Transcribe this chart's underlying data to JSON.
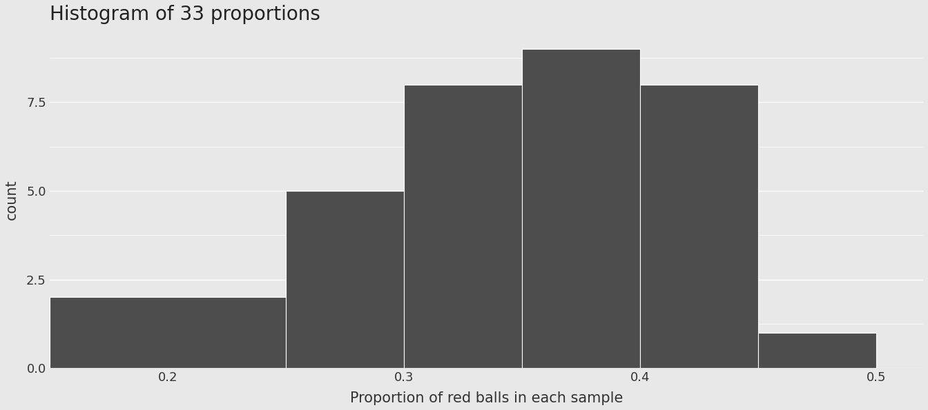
{
  "title": "Histogram of 33 proportions",
  "xlabel": "Proportion of red balls in each sample",
  "ylabel": "count",
  "bar_color": "#4d4d4d",
  "bar_edge_color": "white",
  "background_color": "#e8e8e8",
  "plot_bg_color": "#e8e8e8",
  "bin_edges": [
    0.15,
    0.25,
    0.3,
    0.35,
    0.4,
    0.45,
    0.5
  ],
  "counts": [
    2,
    5,
    8,
    9,
    8,
    1
  ],
  "xlim": [
    0.15,
    0.52
  ],
  "ylim": [
    0,
    9.5
  ],
  "xticks": [
    0.2,
    0.3,
    0.4,
    0.5
  ],
  "yticks": [
    0.0,
    2.5,
    5.0,
    7.5
  ],
  "title_fontsize": 20,
  "label_fontsize": 15,
  "tick_fontsize": 13
}
